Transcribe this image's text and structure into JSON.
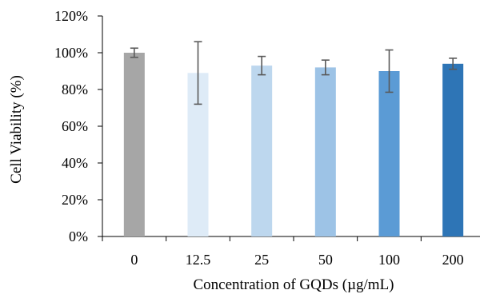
{
  "chart_data": {
    "type": "bar",
    "xlabel": "Concentration of GQDs (µg/mL)",
    "ylabel": "Cell Viability (%)",
    "categories": [
      "0",
      "12.5",
      "25",
      "50",
      "100",
      "200"
    ],
    "values": [
      100,
      89,
      93,
      92,
      90,
      94
    ],
    "errors": [
      2.5,
      17,
      5,
      4,
      11.5,
      3
    ],
    "ylim": [
      0,
      120
    ],
    "yticks": [
      {
        "value": 0,
        "label": "0%"
      },
      {
        "value": 20,
        "label": "20%"
      },
      {
        "value": 40,
        "label": "40%"
      },
      {
        "value": 60,
        "label": "60%"
      },
      {
        "value": 80,
        "label": "80%"
      },
      {
        "value": 100,
        "label": "100%"
      },
      {
        "value": 120,
        "label": "120%"
      }
    ],
    "bar_colors": [
      "#a6a6a6",
      "#deebf7",
      "#bdd7ee",
      "#9dc3e6",
      "#5b9bd5",
      "#2e75b6"
    ],
    "error_bar_color": "#595959",
    "axis_color": "#000000",
    "grid": false,
    "legend": "none"
  }
}
